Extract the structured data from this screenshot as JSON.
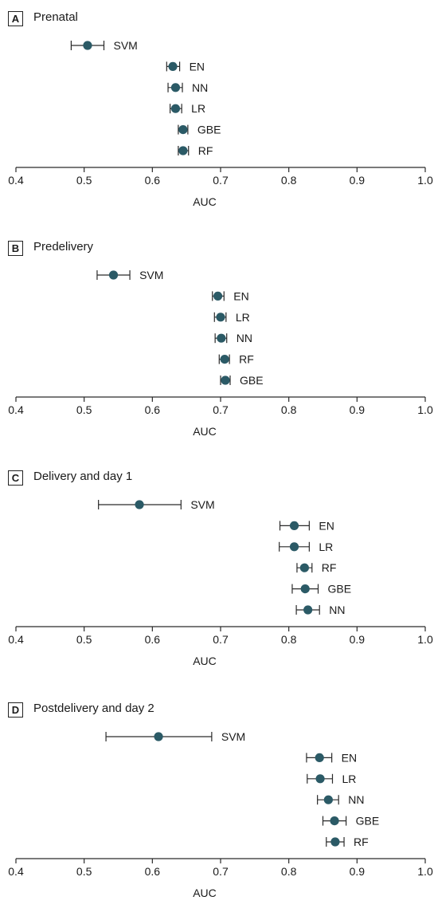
{
  "chart_data": [
    {
      "type": "scatter",
      "panel_letter": "A",
      "title": "Prenatal",
      "xlabel": "AUC",
      "xlim": [
        0.4,
        1.0
      ],
      "xticks": [
        "0.4",
        "0.5",
        "0.6",
        "0.7",
        "0.8",
        "0.9",
        "1.0"
      ],
      "points": [
        {
          "label": "SVM",
          "value": 0.505,
          "ci": [
            0.481,
            0.529
          ]
        },
        {
          "label": "EN",
          "value": 0.63,
          "ci": [
            0.621,
            0.64
          ]
        },
        {
          "label": "NN",
          "value": 0.634,
          "ci": [
            0.623,
            0.644
          ]
        },
        {
          "label": "LR",
          "value": 0.634,
          "ci": [
            0.626,
            0.643
          ]
        },
        {
          "label": "GBE",
          "value": 0.645,
          "ci": [
            0.638,
            0.652
          ]
        },
        {
          "label": "RF",
          "value": 0.645,
          "ci": [
            0.638,
            0.653
          ]
        }
      ]
    },
    {
      "type": "scatter",
      "panel_letter": "B",
      "title": "Predelivery",
      "xlabel": "AUC",
      "xlim": [
        0.4,
        1.0
      ],
      "xticks": [
        "0.4",
        "0.5",
        "0.6",
        "0.7",
        "0.8",
        "0.9",
        "1.0"
      ],
      "points": [
        {
          "label": "SVM",
          "value": 0.543,
          "ci": [
            0.519,
            0.567
          ]
        },
        {
          "label": "EN",
          "value": 0.696,
          "ci": [
            0.688,
            0.705
          ]
        },
        {
          "label": "LR",
          "value": 0.7,
          "ci": [
            0.691,
            0.708
          ]
        },
        {
          "label": "NN",
          "value": 0.701,
          "ci": [
            0.692,
            0.709
          ]
        },
        {
          "label": "RF",
          "value": 0.706,
          "ci": [
            0.698,
            0.713
          ]
        },
        {
          "label": "GBE",
          "value": 0.707,
          "ci": [
            0.7,
            0.714
          ]
        }
      ]
    },
    {
      "type": "scatter",
      "panel_letter": "C",
      "title": "Delivery and day 1",
      "xlabel": "AUC",
      "xlim": [
        0.4,
        1.0
      ],
      "xticks": [
        "0.4",
        "0.5",
        "0.6",
        "0.7",
        "0.8",
        "0.9",
        "1.0"
      ],
      "points": [
        {
          "label": "SVM",
          "value": 0.581,
          "ci": [
            0.521,
            0.642
          ]
        },
        {
          "label": "EN",
          "value": 0.808,
          "ci": [
            0.787,
            0.83
          ]
        },
        {
          "label": "LR",
          "value": 0.808,
          "ci": [
            0.786,
            0.83
          ]
        },
        {
          "label": "RF",
          "value": 0.823,
          "ci": [
            0.812,
            0.834
          ]
        },
        {
          "label": "GBE",
          "value": 0.824,
          "ci": [
            0.805,
            0.843
          ]
        },
        {
          "label": "NN",
          "value": 0.828,
          "ci": [
            0.811,
            0.845
          ]
        }
      ]
    },
    {
      "type": "scatter",
      "panel_letter": "D",
      "title": "Postdelivery and day 2",
      "xlabel": "AUC",
      "xlim": [
        0.4,
        1.0
      ],
      "xticks": [
        "0.4",
        "0.5",
        "0.6",
        "0.7",
        "0.8",
        "0.9",
        "1.0"
      ],
      "points": [
        {
          "label": "SVM",
          "value": 0.609,
          "ci": [
            0.532,
            0.687
          ]
        },
        {
          "label": "EN",
          "value": 0.845,
          "ci": [
            0.826,
            0.863
          ]
        },
        {
          "label": "LR",
          "value": 0.846,
          "ci": [
            0.827,
            0.864
          ]
        },
        {
          "label": "NN",
          "value": 0.858,
          "ci": [
            0.842,
            0.873
          ]
        },
        {
          "label": "GBE",
          "value": 0.867,
          "ci": [
            0.85,
            0.884
          ]
        },
        {
          "label": "RF",
          "value": 0.868,
          "ci": [
            0.855,
            0.881
          ]
        }
      ]
    }
  ]
}
